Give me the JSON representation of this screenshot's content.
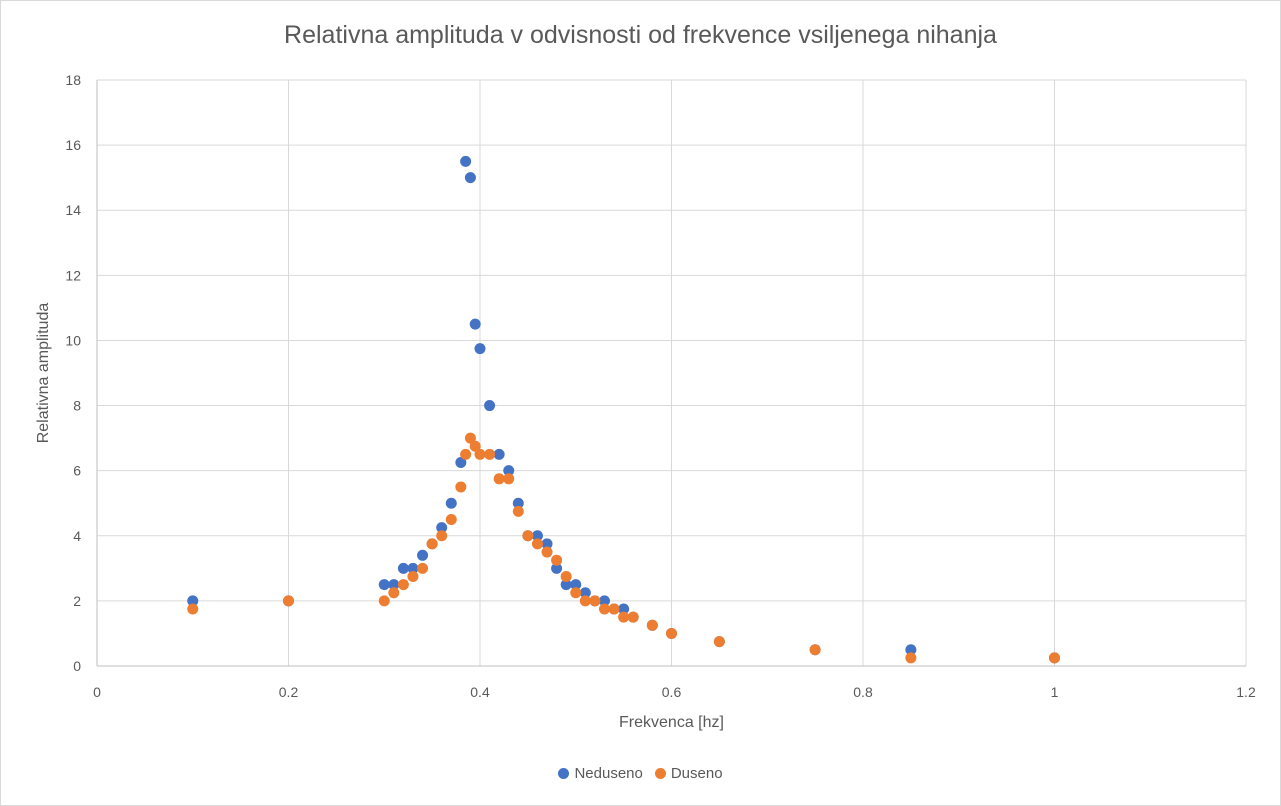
{
  "chart_data": {
    "type": "scatter",
    "title": "Relativna amplituda v odvisnosti od frekvence vsiljenega nihanja",
    "xlabel": "Frekvenca [hz]",
    "ylabel": "Relativna amplituda",
    "xlim": [
      0,
      1.2
    ],
    "ylim": [
      0,
      18
    ],
    "xticks": [
      0,
      0.2,
      0.4,
      0.6,
      0.8,
      1,
      1.2
    ],
    "yticks": [
      0,
      2,
      4,
      6,
      8,
      10,
      12,
      14,
      16,
      18
    ],
    "grid": true,
    "legend_position": "bottom",
    "series": [
      {
        "name": "Neduseno",
        "color": "#4472c4",
        "points": [
          [
            0.1,
            2
          ],
          [
            0.2,
            2
          ],
          [
            0.3,
            2.5
          ],
          [
            0.31,
            2.5
          ],
          [
            0.32,
            3
          ],
          [
            0.33,
            3
          ],
          [
            0.34,
            3.4
          ],
          [
            0.35,
            3.75
          ],
          [
            0.36,
            4.25
          ],
          [
            0.37,
            5
          ],
          [
            0.38,
            6.25
          ],
          [
            0.385,
            15.5
          ],
          [
            0.39,
            15
          ],
          [
            0.395,
            10.5
          ],
          [
            0.4,
            9.75
          ],
          [
            0.41,
            8
          ],
          [
            0.42,
            6.5
          ],
          [
            0.43,
            6
          ],
          [
            0.44,
            5
          ],
          [
            0.45,
            4
          ],
          [
            0.46,
            4
          ],
          [
            0.47,
            3.75
          ],
          [
            0.48,
            3
          ],
          [
            0.49,
            2.5
          ],
          [
            0.5,
            2.5
          ],
          [
            0.51,
            2.25
          ],
          [
            0.52,
            2
          ],
          [
            0.53,
            2
          ],
          [
            0.54,
            1.75
          ],
          [
            0.55,
            1.75
          ],
          [
            0.56,
            1.5
          ],
          [
            0.58,
            1.25
          ],
          [
            0.6,
            1
          ],
          [
            0.65,
            0.75
          ],
          [
            0.75,
            0.5
          ],
          [
            0.85,
            0.5
          ],
          [
            1,
            0.25
          ]
        ]
      },
      {
        "name": "Duseno",
        "color": "#ed7d31",
        "points": [
          [
            0.1,
            1.75
          ],
          [
            0.2,
            2
          ],
          [
            0.3,
            2
          ],
          [
            0.31,
            2.25
          ],
          [
            0.32,
            2.5
          ],
          [
            0.33,
            2.75
          ],
          [
            0.34,
            3
          ],
          [
            0.35,
            3.75
          ],
          [
            0.36,
            4
          ],
          [
            0.37,
            4.5
          ],
          [
            0.38,
            5.5
          ],
          [
            0.385,
            6.5
          ],
          [
            0.39,
            7
          ],
          [
            0.395,
            6.75
          ],
          [
            0.4,
            6.5
          ],
          [
            0.41,
            6.5
          ],
          [
            0.42,
            5.75
          ],
          [
            0.43,
            5.75
          ],
          [
            0.44,
            4.75
          ],
          [
            0.45,
            4
          ],
          [
            0.46,
            3.75
          ],
          [
            0.47,
            3.5
          ],
          [
            0.48,
            3.25
          ],
          [
            0.49,
            2.75
          ],
          [
            0.5,
            2.25
          ],
          [
            0.51,
            2
          ],
          [
            0.52,
            2
          ],
          [
            0.53,
            1.75
          ],
          [
            0.54,
            1.75
          ],
          [
            0.55,
            1.5
          ],
          [
            0.56,
            1.5
          ],
          [
            0.58,
            1.25
          ],
          [
            0.6,
            1
          ],
          [
            0.65,
            0.75
          ],
          [
            0.75,
            0.5
          ],
          [
            0.85,
            0.25
          ],
          [
            1,
            0.25
          ]
        ]
      }
    ]
  }
}
